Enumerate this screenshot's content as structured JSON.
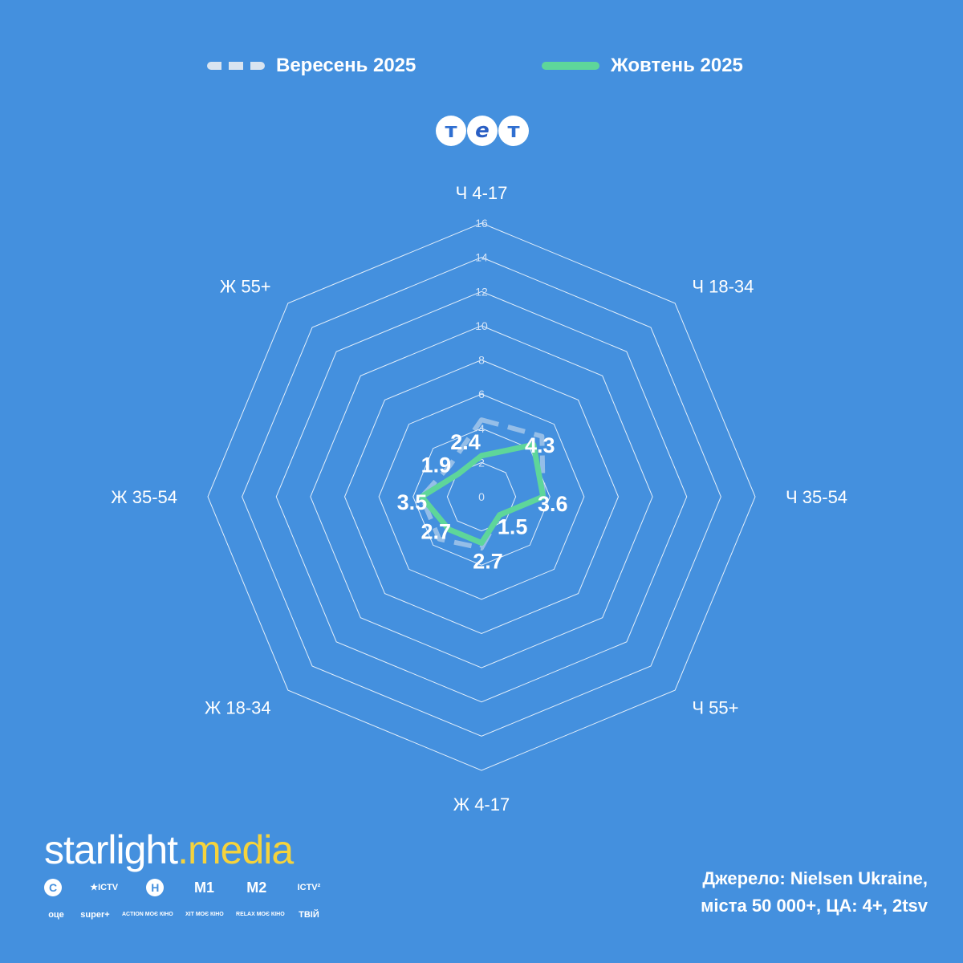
{
  "legend": {
    "september": "Вересень 2025",
    "october": "Жовтень 2025"
  },
  "channel_logo": [
    "т",
    "е",
    "т"
  ],
  "chart_data": {
    "type": "radar",
    "categories": [
      "Ч 4-17",
      "Ч 18-34",
      "Ч 35-54",
      "Ч 55+",
      "Ж 4-17",
      "Ж 18-34",
      "Ж 35-54",
      "Ж 55+"
    ],
    "rlim": [
      0,
      16
    ],
    "rticks": [
      0,
      2,
      4,
      6,
      8,
      10,
      12,
      14,
      16
    ],
    "series": [
      {
        "name": "Вересень 2025",
        "values": [
          4.5,
          5.0,
          3.6,
          1.5,
          3.0,
          3.5,
          3.5,
          2.6
        ],
        "style": "dashed",
        "color": "#d9e4f0"
      },
      {
        "name": "Жовтень 2025",
        "values": [
          2.4,
          4.3,
          3.6,
          1.5,
          2.7,
          2.7,
          3.5,
          1.9
        ],
        "style": "solid",
        "color": "#5ed69a"
      }
    ],
    "data_labels": [
      "2.4",
      "4.3",
      "3.6",
      "1.5",
      "2.7",
      "2.7",
      "3.5",
      "1.9"
    ],
    "grid": true,
    "legend_position": "top"
  },
  "brand": {
    "name_a": "starlight",
    "dot": ".",
    "name_b": "media",
    "channels_row1": [
      "С",
      "★ICTV",
      "Н",
      "М1",
      "М2",
      "ICTV²"
    ],
    "channels_row2": [
      "оце",
      "super+",
      "ACTION МОЄ КІНО",
      "ХІТ МОЄ КІНО",
      "RELAX МОЄ КІНО",
      "ТВІЙ"
    ]
  },
  "source": {
    "line1": "Джерело: Nielsen Ukraine,",
    "line2": "міста 50 000+, ЦА: 4+, 2tsv"
  },
  "colors": {
    "background": "#4490de",
    "october": "#5ed69a",
    "september": "#d9e4f0",
    "brand_accent": "#f5d33c"
  }
}
